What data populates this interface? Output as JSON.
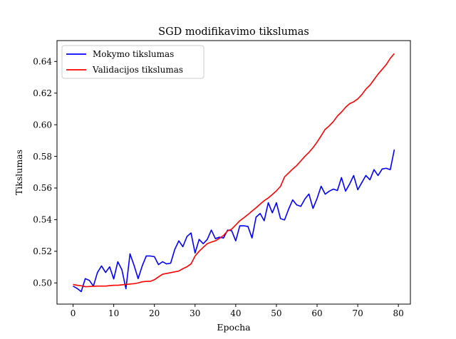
{
  "chart_data": {
    "type": "line",
    "title": "SGD modifikavimo tikslumas",
    "xlabel": "Epocha",
    "ylabel": "Tikslumas",
    "xlim": [
      -3.95,
      82.95
    ],
    "ylim": [
      0.4866,
      0.6532
    ],
    "xticks": [
      0,
      10,
      20,
      30,
      40,
      50,
      60,
      70,
      80
    ],
    "xtick_labels": [
      "0",
      "10",
      "20",
      "30",
      "40",
      "50",
      "60",
      "70",
      "80"
    ],
    "yticks": [
      0.5,
      0.52,
      0.54,
      0.56,
      0.58,
      0.6,
      0.62,
      0.64
    ],
    "ytick_labels": [
      "0.50",
      "0.52",
      "0.54",
      "0.56",
      "0.58",
      "0.60",
      "0.62",
      "0.64"
    ],
    "grid": false,
    "legend_position": "upper-left",
    "series": [
      {
        "name": "Mokymo tikslumas",
        "color": "#0000ff",
        "x": [
          0,
          1,
          2,
          3,
          4,
          5,
          6,
          7,
          8,
          9,
          10,
          11,
          12,
          13,
          14,
          15,
          16,
          17,
          18,
          19,
          20,
          21,
          22,
          23,
          24,
          25,
          26,
          27,
          28,
          29,
          30,
          31,
          32,
          33,
          34,
          35,
          36,
          37,
          38,
          39,
          40,
          41,
          42,
          43,
          44,
          45,
          46,
          47,
          48,
          49,
          50,
          51,
          52,
          53,
          54,
          55,
          56,
          57,
          58,
          59,
          60,
          61,
          62,
          63,
          64,
          65,
          66,
          67,
          68,
          69,
          70,
          71,
          72,
          73,
          74,
          75,
          76,
          77,
          78,
          79
        ],
        "y": [
          0.498,
          0.4965,
          0.4945,
          0.5027,
          0.5016,
          0.498,
          0.5066,
          0.5107,
          0.5066,
          0.5102,
          0.5025,
          0.5134,
          0.5084,
          0.4963,
          0.5184,
          0.5111,
          0.5027,
          0.5107,
          0.517,
          0.517,
          0.5166,
          0.5116,
          0.5134,
          0.512,
          0.5125,
          0.5211,
          0.5266,
          0.5229,
          0.5293,
          0.5316,
          0.5189,
          0.5275,
          0.5248,
          0.5275,
          0.5334,
          0.528,
          0.5289,
          0.5284,
          0.5334,
          0.533,
          0.5266,
          0.5361,
          0.5361,
          0.5357,
          0.5284,
          0.5416,
          0.5439,
          0.5393,
          0.5507,
          0.5443,
          0.5507,
          0.5407,
          0.5398,
          0.5466,
          0.5525,
          0.5493,
          0.5484,
          0.553,
          0.5562,
          0.5471,
          0.5534,
          0.5611,
          0.5561,
          0.558,
          0.5593,
          0.5584,
          0.5666,
          0.558,
          0.5625,
          0.5679,
          0.5589,
          0.5634,
          0.5679,
          0.5652,
          0.5716,
          0.5679,
          0.572,
          0.5725,
          0.5716,
          0.5843
        ]
      },
      {
        "name": "Validacijos tikslumas",
        "color": "#ff0000",
        "x": [
          0,
          1,
          2,
          3,
          4,
          5,
          6,
          7,
          8,
          9,
          10,
          11,
          12,
          13,
          14,
          15,
          16,
          17,
          18,
          19,
          20,
          21,
          22,
          23,
          24,
          25,
          26,
          27,
          28,
          29,
          30,
          31,
          32,
          33,
          34,
          35,
          36,
          37,
          38,
          39,
          40,
          41,
          42,
          43,
          44,
          45,
          46,
          47,
          48,
          49,
          50,
          51,
          52,
          53,
          54,
          55,
          56,
          57,
          58,
          59,
          60,
          61,
          62,
          63,
          64,
          65,
          66,
          67,
          68,
          69,
          70,
          71,
          72,
          73,
          74,
          75,
          76,
          77,
          78,
          79
        ],
        "y": [
          0.499,
          0.4985,
          0.4982,
          0.4976,
          0.4977,
          0.4979,
          0.498,
          0.498,
          0.498,
          0.4983,
          0.4985,
          0.4985,
          0.4988,
          0.499,
          0.4993,
          0.4995,
          0.5,
          0.5007,
          0.501,
          0.501,
          0.502,
          0.5038,
          0.5055,
          0.506,
          0.5065,
          0.507,
          0.5075,
          0.509,
          0.5102,
          0.512,
          0.517,
          0.52,
          0.5225,
          0.5248,
          0.5258,
          0.5266,
          0.5282,
          0.53,
          0.5329,
          0.534,
          0.5366,
          0.5393,
          0.5412,
          0.5432,
          0.5454,
          0.5475,
          0.5498,
          0.552,
          0.5537,
          0.5559,
          0.5582,
          0.561,
          0.567,
          0.5695,
          0.572,
          0.5742,
          0.5771,
          0.58,
          0.5825,
          0.5855,
          0.589,
          0.593,
          0.5971,
          0.5993,
          0.602,
          0.6055,
          0.608,
          0.611,
          0.6133,
          0.6145,
          0.6163,
          0.619,
          0.6225,
          0.625,
          0.6285,
          0.632,
          0.635,
          0.638,
          0.642,
          0.645
        ]
      }
    ]
  }
}
